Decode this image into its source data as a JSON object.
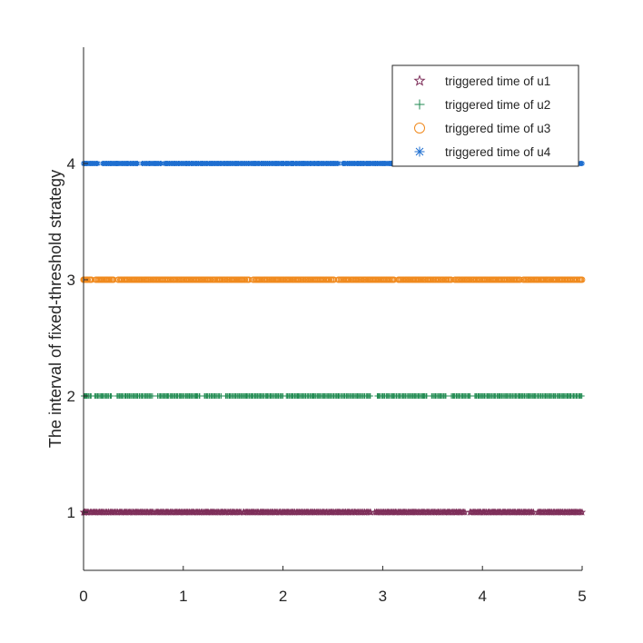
{
  "chart_data": {
    "type": "scatter",
    "title": "",
    "xlabel": "",
    "ylabel": "The interval of fixed-threshold strategy",
    "xlim": [
      0,
      5
    ],
    "ylim": [
      0.5,
      5.0
    ],
    "x_ticks": [
      "0",
      "1",
      "2",
      "3",
      "4",
      "5"
    ],
    "y_ticks": [
      "1",
      "2",
      "3",
      "4"
    ],
    "grid": false,
    "legend_position": "top-right",
    "marker_density_per_unit": 90,
    "series": [
      {
        "name": "triggered time of u1",
        "y": 1,
        "marker": "pentagram",
        "color": "#7e2f5a",
        "gaps": [
          [
            0.7,
            0.72
          ],
          [
            1.58,
            1.6
          ],
          [
            2.88,
            2.91
          ],
          [
            3.83,
            3.87
          ],
          [
            4.52,
            4.55
          ]
        ]
      },
      {
        "name": "triggered time of u2",
        "y": 2,
        "marker": "plus",
        "color": "#1f8a50",
        "gaps": [
          [
            0.08,
            0.11
          ],
          [
            0.28,
            0.33
          ],
          [
            0.7,
            0.74
          ],
          [
            1.17,
            1.2
          ],
          [
            1.38,
            1.42
          ],
          [
            2.0,
            2.03
          ],
          [
            2.88,
            2.94
          ],
          [
            3.45,
            3.49
          ],
          [
            3.64,
            3.68
          ],
          [
            3.88,
            3.92
          ]
        ]
      },
      {
        "name": "triggered time of u3",
        "y": 3,
        "marker": "circle",
        "color": "#f08a1e",
        "gaps": [
          [
            0.08,
            0.11
          ],
          [
            0.3,
            0.34
          ],
          [
            1.66,
            1.69
          ],
          [
            2.52,
            2.55
          ],
          [
            3.12,
            3.15
          ],
          [
            3.69,
            3.72
          ],
          [
            4.38,
            4.41
          ]
        ]
      },
      {
        "name": "triggered time of u4",
        "y": 4,
        "marker": "asterisk",
        "color": "#1f6fd0",
        "gaps": [
          [
            0.15,
            0.18
          ],
          [
            0.55,
            0.58
          ],
          [
            0.78,
            0.81
          ],
          [
            2.56,
            2.59
          ],
          [
            3.34,
            3.37
          ],
          [
            3.81,
            3.84
          ]
        ]
      }
    ]
  }
}
